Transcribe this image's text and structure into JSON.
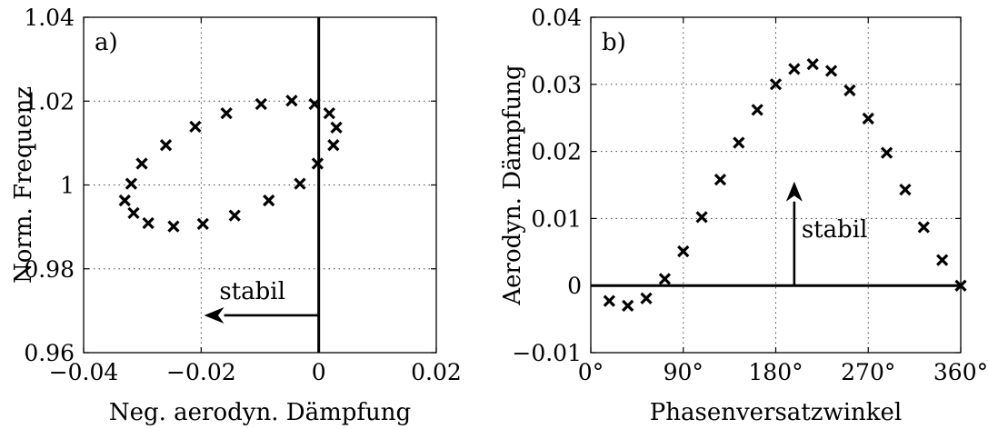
{
  "chart_data": [
    {
      "type": "scatter",
      "panel_label": "a)",
      "xlabel": "Neg. aerodyn. Dämpfung",
      "ylabel": "Norm. Frequenz",
      "xlim": [
        -0.04,
        0.02
      ],
      "ylim": [
        0.96,
        1.04
      ],
      "xticks": [
        -0.04,
        -0.02,
        0,
        0.02
      ],
      "xtick_labels": [
        "−0.04",
        "−0.02",
        "0",
        "0.02"
      ],
      "yticks": [
        0.96,
        0.98,
        1.0,
        1.02,
        1.04
      ],
      "ytick_labels": [
        "0.96",
        "0.98",
        "1",
        "1.02",
        "1.04"
      ],
      "grid": true,
      "marker": "x",
      "reference_line": {
        "orientation": "vertical",
        "x": 0
      },
      "annotation": {
        "text": "stabil",
        "arrow_from": [
          0,
          0.9689
        ],
        "arrow_to": [
          -0.0195,
          0.9689
        ]
      },
      "series": [
        {
          "points": [
            [
              -0.033,
              0.9963
            ],
            [
              -0.0319,
              1.0003
            ],
            [
              -0.0315,
              0.9933
            ],
            [
              -0.0301,
              1.0051
            ],
            [
              -0.029,
              0.9909
            ],
            [
              -0.026,
              1.0095
            ],
            [
              -0.0247,
              0.9901
            ],
            [
              -0.021,
              1.0139
            ],
            [
              -0.0197,
              0.9907
            ],
            [
              -0.0157,
              1.0171
            ],
            [
              -0.0143,
              0.9927
            ],
            [
              -0.0098,
              1.0193
            ],
            [
              -0.0085,
              0.9963
            ],
            [
              -0.0046,
              1.0201
            ],
            [
              -0.0032,
              1.0003
            ],
            [
              -0.0007,
              1.0193
            ],
            [
              -0.0002,
              1.0051
            ],
            [
              0.0018,
              1.0171
            ],
            [
              0.0025,
              1.0095
            ],
            [
              0.003,
              1.0137
            ]
          ]
        }
      ]
    },
    {
      "type": "scatter",
      "panel_label": "b)",
      "xlabel": "Phasenversatzwinkel",
      "ylabel": "Aerodyn. Dämpfung",
      "xlim": [
        0,
        360
      ],
      "ylim": [
        -0.01,
        0.04
      ],
      "xticks": [
        0,
        90,
        180,
        270,
        360
      ],
      "xtick_labels": [
        "0°",
        "90°",
        "180°",
        "270°",
        "360°"
      ],
      "yticks": [
        -0.01,
        0,
        0.01,
        0.02,
        0.03,
        0.04
      ],
      "ytick_labels": [
        "−0.01",
        "0",
        "0.01",
        "0.02",
        "0.03",
        "0.04"
      ],
      "grid": true,
      "marker": "x",
      "reference_line": {
        "orientation": "horizontal",
        "y": 0
      },
      "annotation": {
        "text": "stabil",
        "arrow_from": [
          198,
          0
        ],
        "arrow_to": [
          198,
          0.0155
        ]
      },
      "series": [
        {
          "points": [
            [
              18,
              -0.0023
            ],
            [
              36,
              -0.003
            ],
            [
              54,
              -0.0019
            ],
            [
              72,
              0.001
            ],
            [
              90,
              0.0051
            ],
            [
              108,
              0.0102
            ],
            [
              126,
              0.0158
            ],
            [
              144,
              0.0213
            ],
            [
              162,
              0.0262
            ],
            [
              180,
              0.03
            ],
            [
              198,
              0.0323
            ],
            [
              216,
              0.033
            ],
            [
              234,
              0.032
            ],
            [
              252,
              0.0291
            ],
            [
              270,
              0.0249
            ],
            [
              288,
              0.0198
            ],
            [
              306,
              0.0143
            ],
            [
              324,
              0.0087
            ],
            [
              342,
              0.0038
            ],
            [
              360,
              0.0
            ]
          ]
        }
      ]
    }
  ]
}
